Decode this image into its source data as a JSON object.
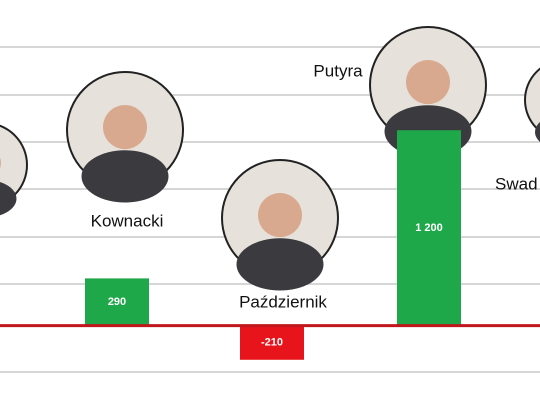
{
  "chart_data": {
    "type": "bar",
    "categories": [
      "Kownacki",
      "Październik",
      "Putyra",
      "Swad"
    ],
    "values": [
      290,
      -210,
      1200,
      null
    ],
    "value_labels": [
      "290",
      "-210",
      "1 200",
      null
    ],
    "colors": [
      "#1fa84a",
      "#e8141b",
      "#1fa84a",
      "#1fa84a"
    ],
    "baseline_color": "#c0171d",
    "ylim": [
      -500,
      2000
    ]
  }
}
